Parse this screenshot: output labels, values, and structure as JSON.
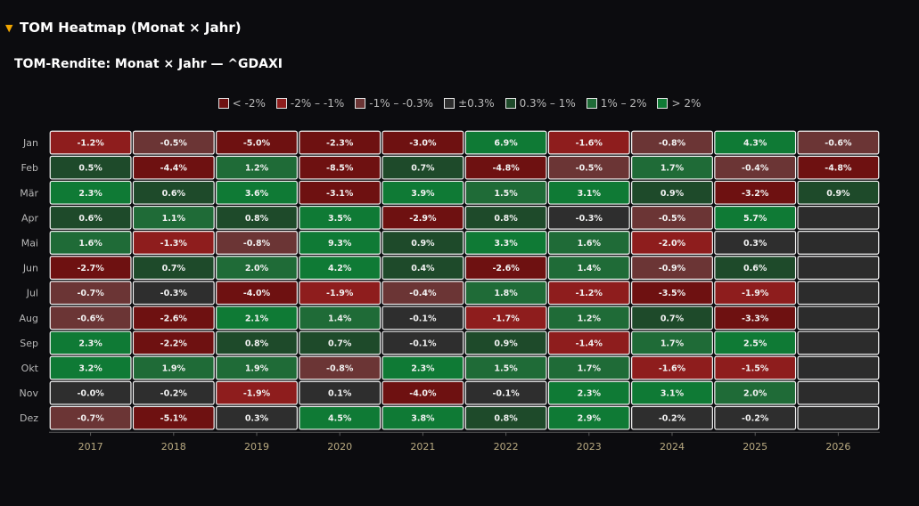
{
  "section": {
    "caret": "▼",
    "title": "TOM Heatmap (Monat × Jahr)"
  },
  "chart_data": {
    "type": "heatmap",
    "title": "TOM-Rendite: Monat × Jahr — ^GDAXI",
    "x": [
      "2017",
      "2018",
      "2019",
      "2020",
      "2021",
      "2022",
      "2023",
      "2024",
      "2025",
      "2026"
    ],
    "y": [
      "Jan",
      "Feb",
      "Mär",
      "Apr",
      "Mai",
      "Jun",
      "Jul",
      "Aug",
      "Sep",
      "Okt",
      "Nov",
      "Dez"
    ],
    "values": [
      [
        -1.2,
        -0.5,
        -5.0,
        -2.3,
        -3.0,
        6.9,
        -1.6,
        -0.8,
        4.3,
        -0.6
      ],
      [
        0.5,
        -4.4,
        1.2,
        -8.5,
        0.7,
        -4.8,
        -0.5,
        1.7,
        -0.4,
        -4.8
      ],
      [
        2.3,
        0.6,
        3.6,
        -3.1,
        3.9,
        1.5,
        3.1,
        0.9,
        -3.2,
        0.9
      ],
      [
        0.6,
        1.1,
        0.8,
        3.5,
        -2.9,
        0.8,
        -0.3,
        -0.5,
        5.7,
        null
      ],
      [
        1.6,
        -1.3,
        -0.8,
        9.3,
        0.9,
        3.3,
        1.6,
        -2.0,
        0.3,
        null
      ],
      [
        -2.7,
        0.7,
        2.0,
        4.2,
        0.4,
        -2.6,
        1.4,
        -0.9,
        0.6,
        null
      ],
      [
        -0.7,
        -0.3,
        -4.0,
        -1.9,
        -0.4,
        1.8,
        -1.2,
        -3.5,
        -1.9,
        null
      ],
      [
        -0.6,
        -2.6,
        2.1,
        1.4,
        -0.1,
        -1.7,
        1.2,
        0.7,
        -3.3,
        null
      ],
      [
        2.3,
        -2.2,
        0.8,
        0.7,
        -0.1,
        0.9,
        -1.4,
        1.7,
        2.5,
        null
      ],
      [
        3.2,
        1.9,
        1.9,
        -0.8,
        2.3,
        1.5,
        1.7,
        -1.6,
        -1.5,
        null
      ],
      [
        -0.0,
        -0.2,
        -1.9,
        0.1,
        -4.0,
        -0.1,
        2.3,
        3.1,
        2.0,
        null
      ],
      [
        -0.7,
        -5.1,
        0.3,
        4.5,
        3.8,
        0.8,
        2.9,
        -0.2,
        -0.2,
        null
      ]
    ],
    "labels": [
      [
        "-1.2%",
        "-0.5%",
        "-5.0%",
        "-2.3%",
        "-3.0%",
        "6.9%",
        "-1.6%",
        "-0.8%",
        "4.3%",
        "-0.6%"
      ],
      [
        "0.5%",
        "-4.4%",
        "1.2%",
        "-8.5%",
        "0.7%",
        "-4.8%",
        "-0.5%",
        "1.7%",
        "-0.4%",
        "-4.8%"
      ],
      [
        "2.3%",
        "0.6%",
        "3.6%",
        "-3.1%",
        "3.9%",
        "1.5%",
        "3.1%",
        "0.9%",
        "-3.2%",
        "0.9%"
      ],
      [
        "0.6%",
        "1.1%",
        "0.8%",
        "3.5%",
        "-2.9%",
        "0.8%",
        "-0.3%",
        "-0.5%",
        "5.7%",
        ""
      ],
      [
        "1.6%",
        "-1.3%",
        "-0.8%",
        "9.3%",
        "0.9%",
        "3.3%",
        "1.6%",
        "-2.0%",
        "0.3%",
        ""
      ],
      [
        "-2.7%",
        "0.7%",
        "2.0%",
        "4.2%",
        "0.4%",
        "-2.6%",
        "1.4%",
        "-0.9%",
        "0.6%",
        ""
      ],
      [
        "-0.7%",
        "-0.3%",
        "-4.0%",
        "-1.9%",
        "-0.4%",
        "1.8%",
        "-1.2%",
        "-3.5%",
        "-1.9%",
        ""
      ],
      [
        "-0.6%",
        "-2.6%",
        "2.1%",
        "1.4%",
        "-0.1%",
        "-1.7%",
        "1.2%",
        "0.7%",
        "-3.3%",
        ""
      ],
      [
        "2.3%",
        "-2.2%",
        "0.8%",
        "0.7%",
        "-0.1%",
        "0.9%",
        "-1.4%",
        "1.7%",
        "2.5%",
        ""
      ],
      [
        "3.2%",
        "1.9%",
        "1.9%",
        "-0.8%",
        "2.3%",
        "1.5%",
        "1.7%",
        "-1.6%",
        "-1.5%",
        ""
      ],
      [
        "-0.0%",
        "-0.2%",
        "-1.9%",
        "0.1%",
        "-4.0%",
        "-0.1%",
        "2.3%",
        "3.1%",
        "2.0%",
        ""
      ],
      [
        "-0.7%",
        "-5.1%",
        "0.3%",
        "4.5%",
        "3.8%",
        "0.8%",
        "2.9%",
        "-0.2%",
        "-0.2%",
        ""
      ]
    ],
    "legend": [
      {
        "label": "< -2%",
        "color": "#6e1111"
      },
      {
        "label": "-2% – -1%",
        "color": "#8e1d1d"
      },
      {
        "label": "-1% – -0.3%",
        "color": "#6b3535"
      },
      {
        "label": "±0.3%",
        "color": "#2e2e2e"
      },
      {
        "label": "0.3% – 1%",
        "color": "#1e4a2a"
      },
      {
        "label": "1% – 2%",
        "color": "#1f6b37"
      },
      {
        "label": "> 2%",
        "color": "#0f7a35"
      }
    ],
    "empty_color": "#2c2c2c",
    "legend_placement": "top-center"
  }
}
